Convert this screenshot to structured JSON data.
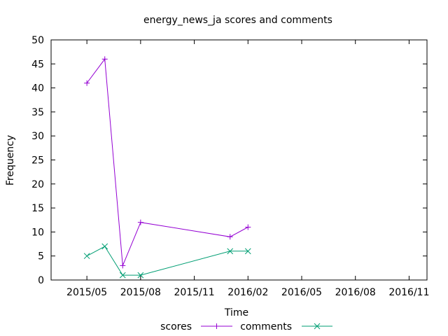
{
  "chart_data": {
    "type": "line",
    "title": "energy_news_ja scores and comments",
    "xlabel": "Time",
    "ylabel": "Frequency",
    "x_ticks": [
      "2015/05",
      "2015/08",
      "2015/11",
      "2016/02",
      "2016/05",
      "2016/08",
      "2016/11"
    ],
    "x_range": [
      "2015-03-01",
      "2016-12-01"
    ],
    "y_ticks": [
      0,
      5,
      10,
      15,
      20,
      25,
      30,
      35,
      40,
      45,
      50
    ],
    "ylim": [
      0,
      50
    ],
    "grid": false,
    "legend_position": "bottom-center",
    "series": [
      {
        "name": "scores",
        "color": "#9400d3",
        "marker": "plus",
        "points": [
          {
            "x": "2015-05-01",
            "y": 41
          },
          {
            "x": "2015-06-01",
            "y": 46
          },
          {
            "x": "2015-07-01",
            "y": 3
          },
          {
            "x": "2015-08-01",
            "y": 12
          },
          {
            "x": "2016-01-01",
            "y": 9
          },
          {
            "x": "2016-02-01",
            "y": 11
          }
        ]
      },
      {
        "name": "comments",
        "color": "#009e73",
        "marker": "cross",
        "points": [
          {
            "x": "2015-05-01",
            "y": 5
          },
          {
            "x": "2015-06-01",
            "y": 7
          },
          {
            "x": "2015-07-01",
            "y": 1
          },
          {
            "x": "2015-08-01",
            "y": 1
          },
          {
            "x": "2016-01-01",
            "y": 6
          },
          {
            "x": "2016-02-01",
            "y": 6
          }
        ]
      }
    ]
  }
}
